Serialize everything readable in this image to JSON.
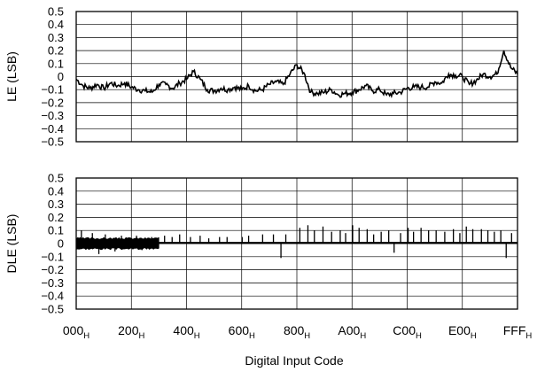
{
  "chart_data": [
    {
      "type": "line",
      "ylabel": "LE (LSB)",
      "xlabel": "",
      "ylim": [
        -0.5,
        0.5
      ],
      "yticks": [
        "0.5",
        "0.4",
        "0.3",
        "0.2",
        "0.1",
        "0",
        "−0.1",
        "−0.2",
        "−0.3",
        "−0.4",
        "−0.5"
      ],
      "xlim": [
        0,
        4095
      ],
      "grid": true,
      "x": [
        0,
        64,
        128,
        192,
        256,
        320,
        384,
        448,
        512,
        576,
        640,
        704,
        768,
        832,
        896,
        960,
        1024,
        1088,
        1152,
        1216,
        1280,
        1344,
        1408,
        1472,
        1536,
        1600,
        1664,
        1728,
        1792,
        1856,
        1920,
        1984,
        2048,
        2112,
        2176,
        2240,
        2304,
        2368,
        2432,
        2496,
        2560,
        2624,
        2688,
        2752,
        2816,
        2880,
        2944,
        3008,
        3072,
        3136,
        3200,
        3264,
        3328,
        3392,
        3456,
        3520,
        3584,
        3648,
        3712,
        3776,
        3840,
        3904,
        3968,
        4032,
        4095
      ],
      "series": [
        {
          "values": [
            -0.02,
            -0.07,
            -0.09,
            -0.06,
            -0.09,
            -0.05,
            -0.07,
            -0.05,
            -0.08,
            -0.1,
            -0.11,
            -0.12,
            -0.06,
            -0.06,
            -0.09,
            -0.05,
            -0.02,
            0.04,
            -0.02,
            -0.1,
            -0.11,
            -0.09,
            -0.1,
            -0.08,
            -0.1,
            -0.07,
            -0.11,
            -0.1,
            -0.06,
            -0.04,
            -0.06,
            0.02,
            0.09,
            0.03,
            -0.12,
            -0.13,
            -0.12,
            -0.1,
            -0.14,
            -0.13,
            -0.12,
            -0.1,
            -0.07,
            -0.11,
            -0.1,
            -0.14,
            -0.13,
            -0.12,
            -0.09,
            -0.08,
            -0.08,
            -0.08,
            -0.04,
            -0.05,
            0.02,
            0.01,
            0.0,
            -0.06,
            -0.03,
            0.02,
            0.0,
            0.02,
            0.2,
            0.07,
            0.02
          ]
        }
      ]
    },
    {
      "type": "bar",
      "ylabel": "DLE (LSB)",
      "xlabel": "Digital Input Code",
      "ylim": [
        -0.5,
        0.5
      ],
      "yticks": [
        "0.5",
        "0.4",
        "0.3",
        "0.2",
        "0.1",
        "0",
        "−0.1",
        "−0.2",
        "−0.3",
        "−0.4",
        "−0.5"
      ],
      "xlim": [
        0,
        4095
      ],
      "grid": true,
      "band": {
        "x_end": 768,
        "upper": 0.04,
        "lower": -0.04
      },
      "spikes": [
        {
          "x": 48,
          "v": 0.1
        },
        {
          "x": 150,
          "v": 0.08
        },
        {
          "x": 210,
          "v": -0.08
        },
        {
          "x": 270,
          "v": 0.07
        },
        {
          "x": 360,
          "v": -0.06
        },
        {
          "x": 420,
          "v": 0.06
        },
        {
          "x": 560,
          "v": 0.06
        },
        {
          "x": 610,
          "v": -0.05
        },
        {
          "x": 700,
          "v": 0.05
        },
        {
          "x": 820,
          "v": 0.06
        },
        {
          "x": 890,
          "v": 0.05
        },
        {
          "x": 960,
          "v": 0.07
        },
        {
          "x": 1060,
          "v": 0.05
        },
        {
          "x": 1150,
          "v": 0.06
        },
        {
          "x": 1230,
          "v": 0.04
        },
        {
          "x": 1330,
          "v": 0.05
        },
        {
          "x": 1400,
          "v": 0.05
        },
        {
          "x": 1540,
          "v": 0.05
        },
        {
          "x": 1600,
          "v": 0.06
        },
        {
          "x": 1730,
          "v": 0.07
        },
        {
          "x": 1830,
          "v": 0.07
        },
        {
          "x": 1900,
          "v": -0.11
        },
        {
          "x": 1945,
          "v": 0.07
        },
        {
          "x": 2075,
          "v": 0.12
        },
        {
          "x": 2150,
          "v": 0.14
        },
        {
          "x": 2210,
          "v": 0.1
        },
        {
          "x": 2290,
          "v": 0.13
        },
        {
          "x": 2370,
          "v": 0.09
        },
        {
          "x": 2450,
          "v": 0.1
        },
        {
          "x": 2500,
          "v": 0.08
        },
        {
          "x": 2565,
          "v": 0.14
        },
        {
          "x": 2625,
          "v": 0.12
        },
        {
          "x": 2700,
          "v": 0.11
        },
        {
          "x": 2760,
          "v": 0.07
        },
        {
          "x": 2830,
          "v": 0.09
        },
        {
          "x": 2900,
          "v": 0.1
        },
        {
          "x": 2950,
          "v": -0.07
        },
        {
          "x": 3010,
          "v": 0.08
        },
        {
          "x": 3080,
          "v": 0.12
        },
        {
          "x": 3130,
          "v": 0.09
        },
        {
          "x": 3200,
          "v": 0.12
        },
        {
          "x": 3270,
          "v": 0.1
        },
        {
          "x": 3340,
          "v": 0.1
        },
        {
          "x": 3420,
          "v": 0.09
        },
        {
          "x": 3500,
          "v": 0.11
        },
        {
          "x": 3560,
          "v": 0.08
        },
        {
          "x": 3620,
          "v": 0.13
        },
        {
          "x": 3680,
          "v": 0.11
        },
        {
          "x": 3760,
          "v": 0.11
        },
        {
          "x": 3820,
          "v": 0.1
        },
        {
          "x": 3880,
          "v": 0.09
        },
        {
          "x": 3940,
          "v": 0.1
        },
        {
          "x": 3990,
          "v": -0.11
        },
        {
          "x": 4040,
          "v": 0.08
        }
      ]
    }
  ],
  "xticks": [
    {
      "main": "000",
      "sub": "H",
      "value": 0
    },
    {
      "main": "200",
      "sub": "H",
      "value": 512
    },
    {
      "main": "400",
      "sub": "H",
      "value": 1024
    },
    {
      "main": "600",
      "sub": "H",
      "value": 1536
    },
    {
      "main": "800",
      "sub": "H",
      "value": 2048
    },
    {
      "main": "A00",
      "sub": "H",
      "value": 2560
    },
    {
      "main": "C00",
      "sub": "H",
      "value": 3072
    },
    {
      "main": "E00",
      "sub": "H",
      "value": 3584
    },
    {
      "main": "FFF",
      "sub": "H",
      "value": 4095
    }
  ]
}
